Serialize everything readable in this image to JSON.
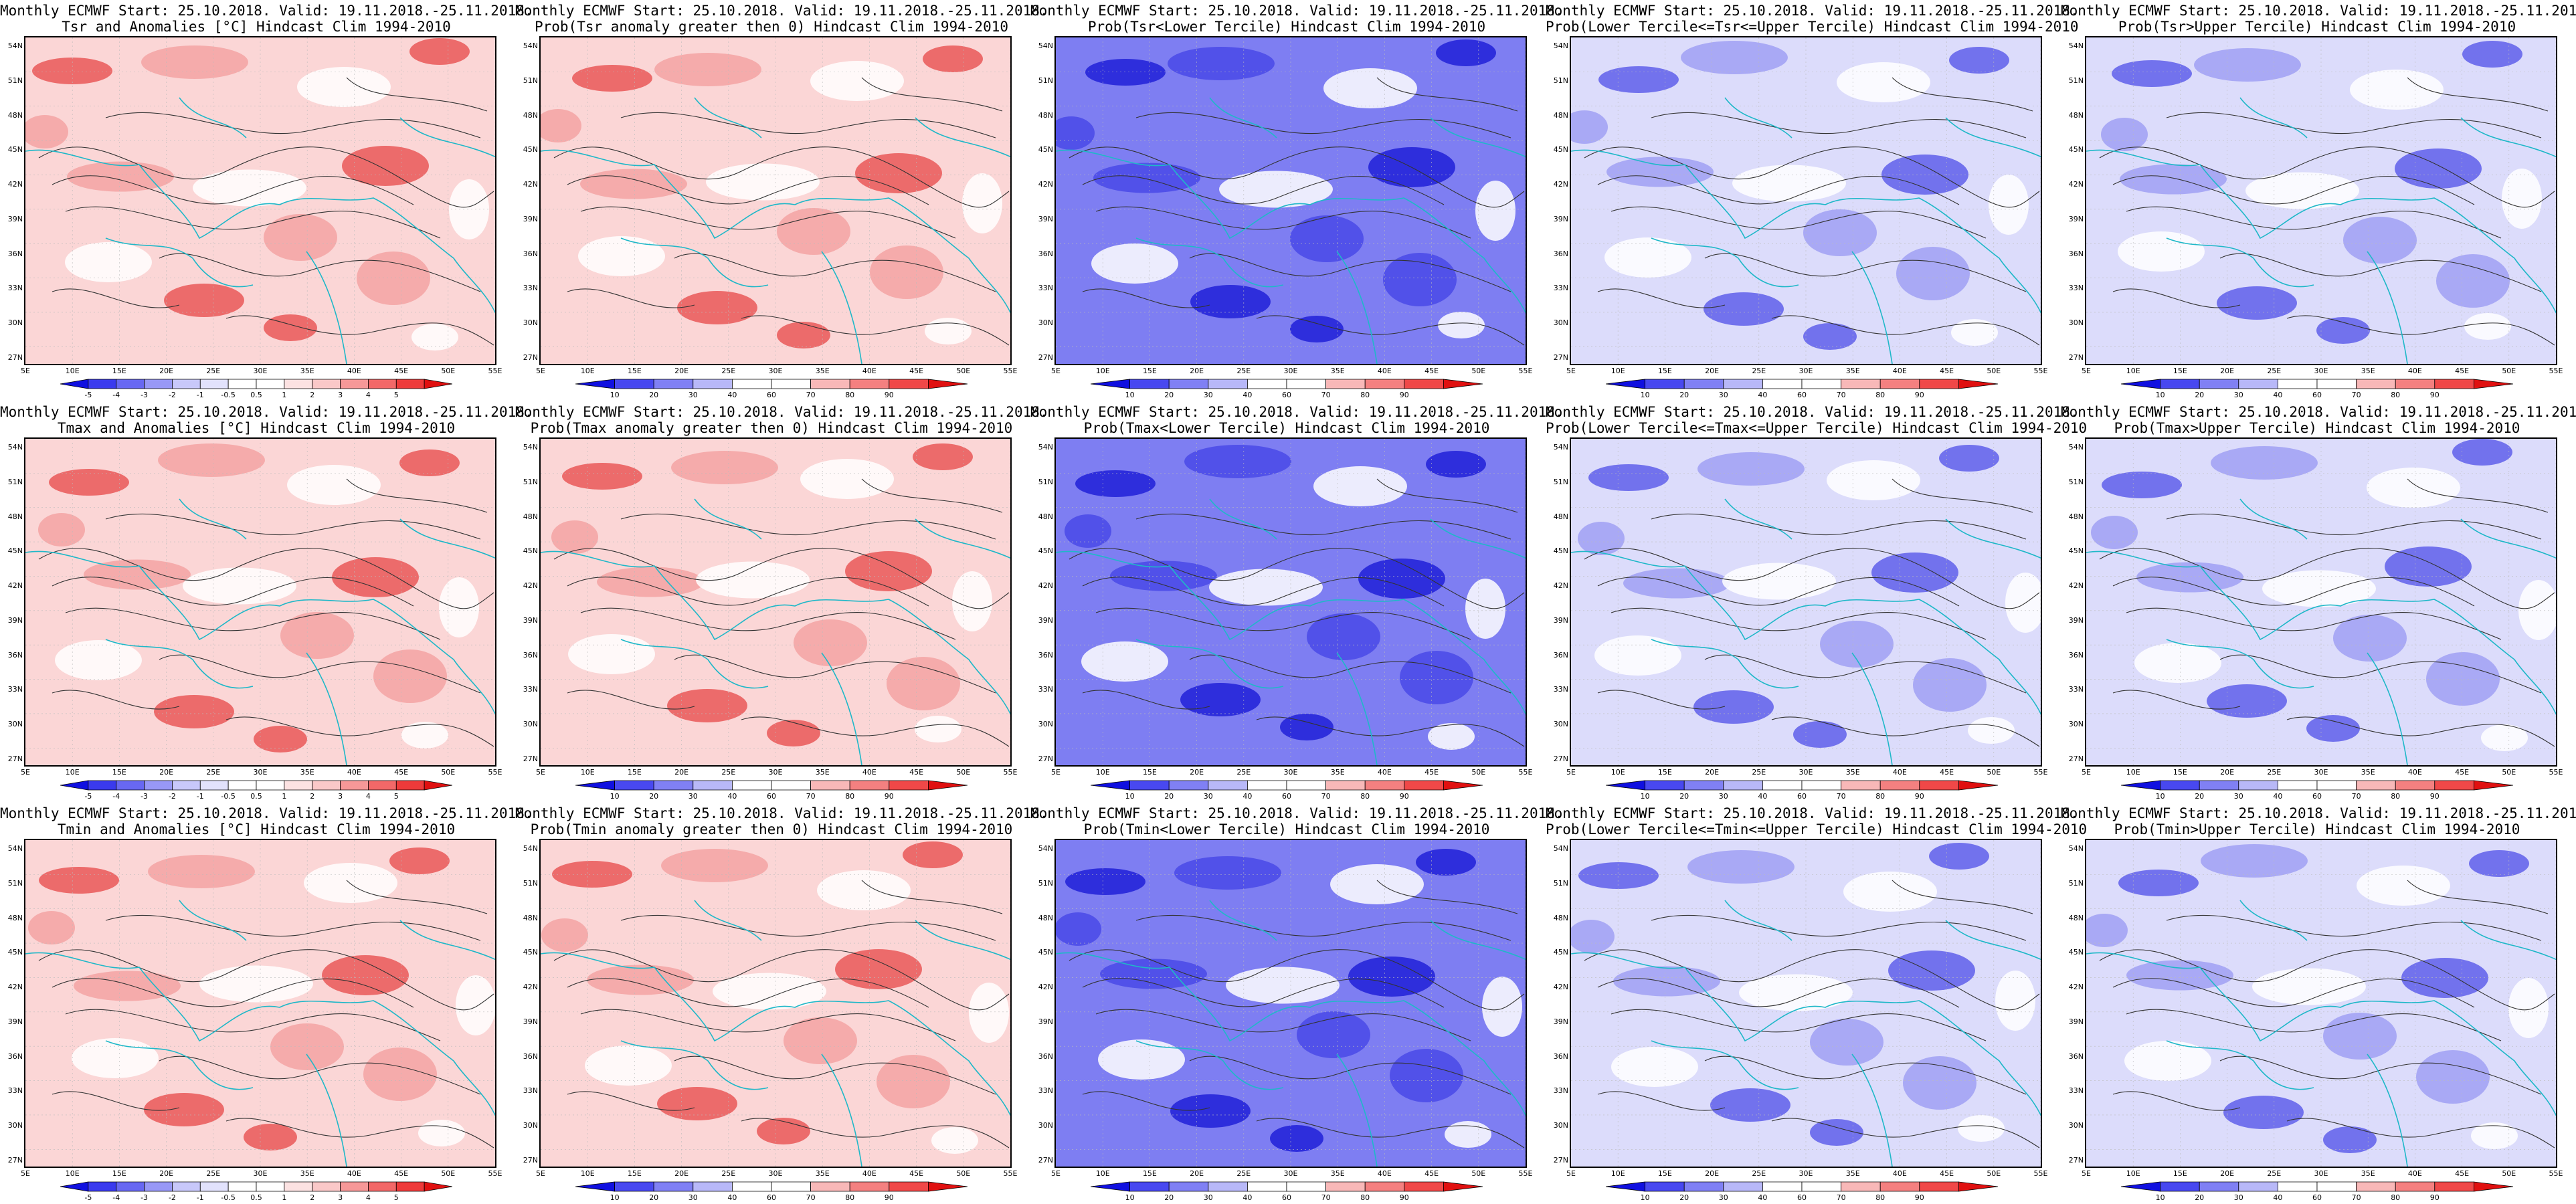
{
  "header_line": "Monthly ECMWF Start: 25.10.2018. Valid: 19.11.2018.-25.11.2018.",
  "lat_ticks": [
    "54N",
    "51N",
    "48N",
    "45N",
    "42N",
    "39N",
    "36N",
    "33N",
    "30N",
    "27N"
  ],
  "lon_ticks": [
    "5E",
    "10E",
    "15E",
    "20E",
    "25E",
    "30E",
    "35E",
    "40E",
    "45E",
    "50E",
    "55E"
  ],
  "colors": {
    "land_contour": "#333333",
    "coast": "#1fb8c8",
    "anomaly_scale": [
      "#1010e0",
      "#3a3aee",
      "#6868f2",
      "#9898f6",
      "#c8c8fa",
      "#e2e2fc",
      "#ffffff",
      "#ffffff",
      "#fce2e2",
      "#fac8c8",
      "#f69898",
      "#f26868",
      "#ee3a3a",
      "#e01010"
    ],
    "prob_scale": [
      "#1010e0",
      "#4848f0",
      "#8080f4",
      "#b8b8f8",
      "#ffffff",
      "#ffffff",
      "#f8b8b8",
      "#f48080",
      "#f04848",
      "#e01010"
    ]
  },
  "colorbars": {
    "anomaly": [
      "-5",
      "-4",
      "-3",
      "-2",
      "-1",
      "-0.5",
      "0.5",
      "1",
      "2",
      "3",
      "4",
      "5"
    ],
    "prob": [
      "10",
      "20",
      "30",
      "40",
      "60",
      "70",
      "80",
      "90"
    ]
  },
  "panels": [
    {
      "row": 0,
      "col": 0,
      "title": "Tsr and Anomalies [°C] Hindcast Clim 1994-2010",
      "scale": "anomaly",
      "tone": "warm"
    },
    {
      "row": 0,
      "col": 1,
      "title": "Prob(Tsr anomaly greater then 0) Hindcast Clim 1994-2010",
      "scale": "prob",
      "tone": "warm"
    },
    {
      "row": 0,
      "col": 2,
      "title": "Prob(Tsr<Lower Tercile) Hindcast Clim 1994-2010",
      "scale": "prob",
      "tone": "cold"
    },
    {
      "row": 0,
      "col": 3,
      "title": "Prob(Lower Tercile<=Tsr<=Upper Tercile) Hindcast Clim 1994-2010",
      "scale": "prob",
      "tone": "mixed"
    },
    {
      "row": 0,
      "col": 4,
      "title": "Prob(Tsr>Upper Tercile) Hindcast Clim 1994-2010",
      "scale": "prob",
      "tone": "mixed"
    },
    {
      "row": 1,
      "col": 0,
      "title": "Tmax and Anomalies [°C] Hindcast Clim 1994-2010",
      "scale": "anomaly",
      "tone": "warm"
    },
    {
      "row": 1,
      "col": 1,
      "title": "Prob(Tmax anomaly greater then 0) Hindcast Clim 1994-2010",
      "scale": "prob",
      "tone": "warm"
    },
    {
      "row": 1,
      "col": 2,
      "title": "Prob(Tmax<Lower Tercile) Hindcast Clim 1994-2010",
      "scale": "prob",
      "tone": "cold"
    },
    {
      "row": 1,
      "col": 3,
      "title": "Prob(Lower Tercile<=Tmax<=Upper Tercile) Hindcast Clim 1994-2010",
      "scale": "prob",
      "tone": "mixed"
    },
    {
      "row": 1,
      "col": 4,
      "title": "Prob(Tmax>Upper Tercile) Hindcast Clim 1994-2010",
      "scale": "prob",
      "tone": "mixed"
    },
    {
      "row": 2,
      "col": 0,
      "title": "Tmin and Anomalies [°C] Hindcast Clim 1994-2010",
      "scale": "anomaly",
      "tone": "warm"
    },
    {
      "row": 2,
      "col": 1,
      "title": "Prob(Tmin anomaly greater then 0) Hindcast Clim 1994-2010",
      "scale": "prob",
      "tone": "warm"
    },
    {
      "row": 2,
      "col": 2,
      "title": "Prob(Tmin<Lower Tercile) Hindcast Clim 1994-2010",
      "scale": "prob",
      "tone": "cold"
    },
    {
      "row": 2,
      "col": 3,
      "title": "Prob(Lower Tercile<=Tmin<=Upper Tercile) Hindcast Clim 1994-2010",
      "scale": "prob",
      "tone": "mixed"
    },
    {
      "row": 2,
      "col": 4,
      "title": "Prob(Tmin>Upper Tercile) Hindcast Clim 1994-2010",
      "scale": "prob",
      "tone": "mixed"
    }
  ]
}
